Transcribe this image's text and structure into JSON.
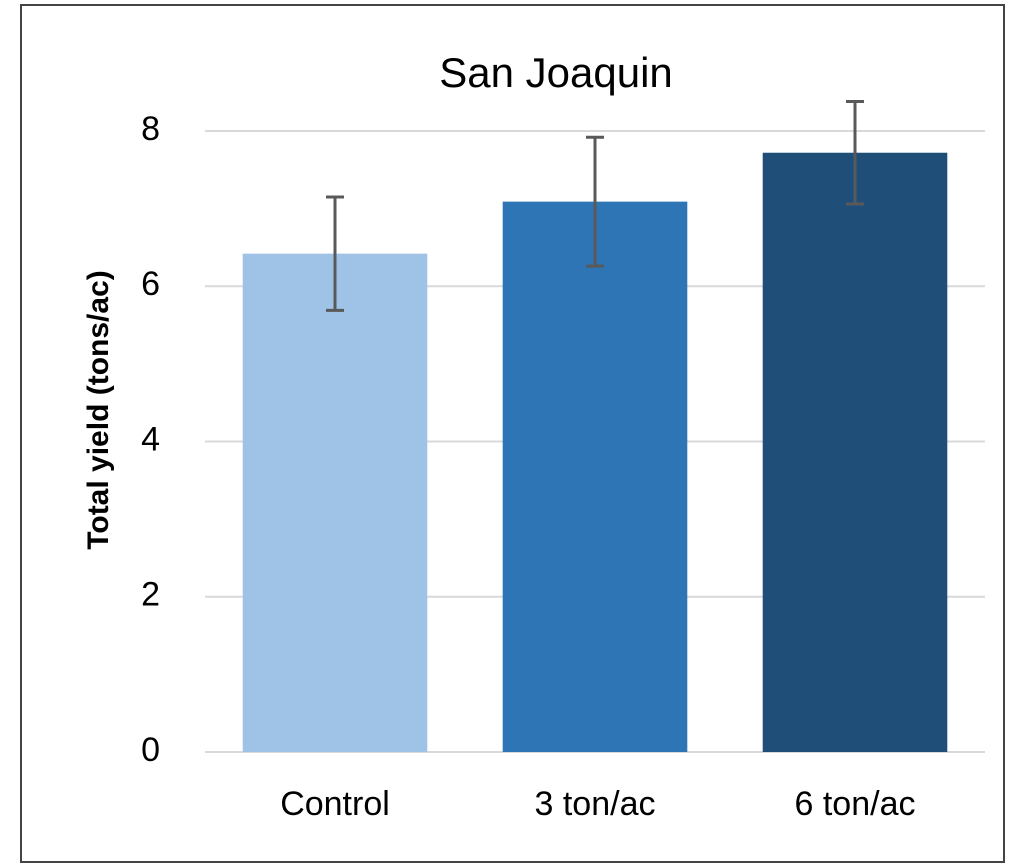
{
  "chart_data": {
    "type": "bar",
    "title": "San Joaquin",
    "y_label": "Total yield (tons/ac)",
    "categories": [
      "Control",
      "3 ton/ac",
      "6 ton/ac"
    ],
    "values": [
      6.42,
      7.09,
      7.72
    ],
    "errors": [
      0.73,
      0.83,
      0.66
    ],
    "colors": [
      "#9fc3e7",
      "#2e75b6",
      "#1f4e79"
    ],
    "ylim": [
      0,
      8
    ],
    "yticks": [
      0,
      2,
      4,
      6,
      8
    ],
    "grid": true
  }
}
